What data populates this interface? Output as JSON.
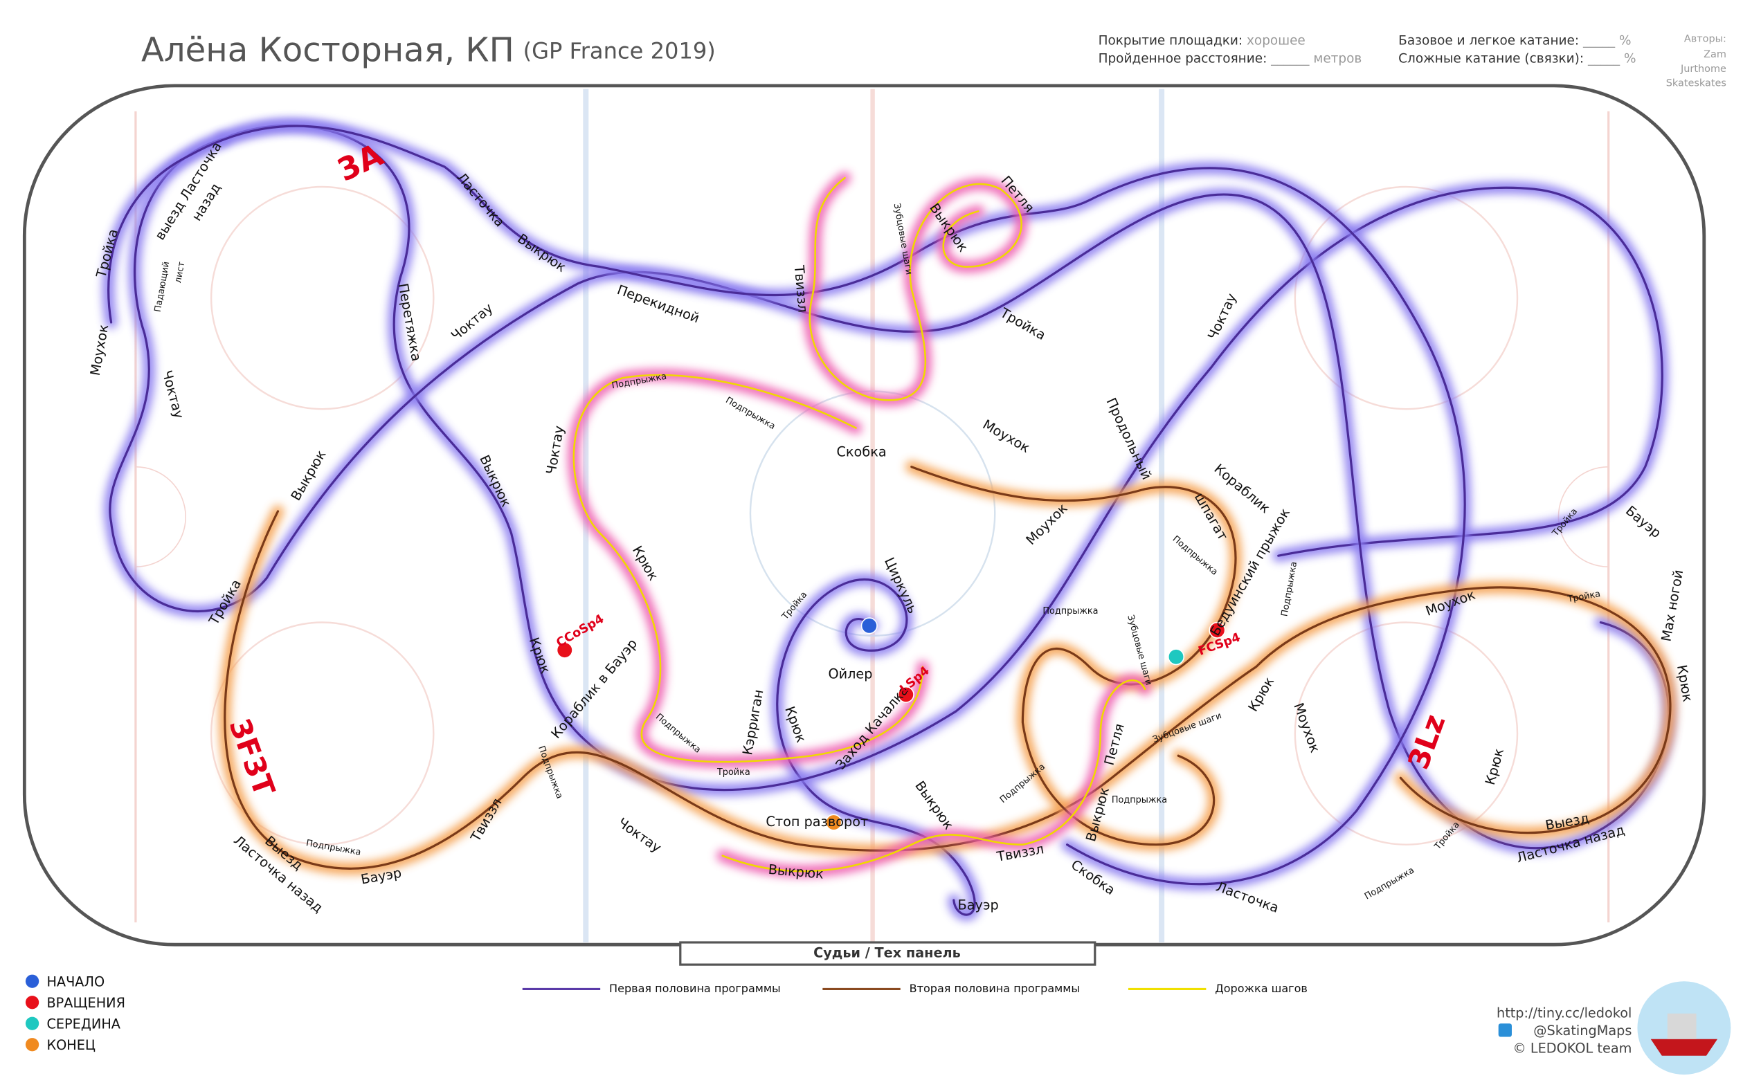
{
  "header": {
    "title": "Алёна Косторная, КП",
    "subtitle": "(GP France 2019)"
  },
  "stats": [
    {
      "label": "Покрытие площадки:",
      "value": "хорошее"
    },
    {
      "label": "Пройденное расстояние:",
      "value": "______ метров"
    },
    {
      "label": "Базовое и легкое катание:",
      "value": "_____ %"
    },
    {
      "label": "Сложные катание (связки):",
      "value": "_____ %"
    }
  ],
  "authors": {
    "title": "Авторы:",
    "names": [
      "Zam",
      "Jurthome",
      "Skateskates"
    ]
  },
  "judges": "Судьи / Тех панель",
  "legend_lines": [
    "Первая половина программы",
    "Вторая половина программы",
    "Дорожка шагов"
  ],
  "legend_points": [
    "НАЧАЛО",
    "ВРАЩЕНИЯ",
    "СЕРЕДИНА",
    "КОНЕЦ"
  ],
  "footer": [
    "http://tiny.cc/ledokol",
    "@SkatingMaps",
    "© LEDOKOL team"
  ],
  "elements": [
    "3A",
    "3F3T",
    "3Lz",
    "CCoSp4",
    "LSp4",
    "FCSp4"
  ],
  "labels": [
    "Тройка",
    "Моухок",
    "выезд Ласточка",
    "назад",
    "Падающий",
    "лист",
    "Чоктау",
    "Перетяжка",
    "Ласточка",
    "Выкрюк",
    "Чоктау",
    "Перекидной",
    "Выкрюк",
    "Тройка",
    "Выкрюк",
    "Твиззл",
    "Зубцовые шаги",
    "Выкрюк",
    "Петля",
    "Тройка",
    "Подпрыжка",
    "Подпрыжка",
    "Чоктау",
    "Скобка",
    "Моухок",
    "Продольный",
    "Чоктау",
    "Кораблик",
    "шпагат",
    "Моухок",
    "Крюк",
    "Циркуль",
    "Тройка",
    "Подпрыжка",
    "Бедуинский прыжок",
    "Подпрыжка",
    "Тройка",
    "Бауэр",
    "Мах ногой",
    "Моухок",
    "Тройка",
    "Крюк",
    "Подпрыжка",
    "Зубцовые шаги",
    "Крюк",
    "Кораблик в Бауэр",
    "Ойлер",
    "Кэрриган",
    "Крюк",
    "Заход Качалка",
    "Подпрыжка",
    "Тройка",
    "Подпрыжка",
    "Крюк",
    "Зубцовые шаги",
    "Моухок",
    "Петля",
    "Крюк",
    "Твиззл",
    "Выкрюк",
    "Подпрыжка",
    "Подпрыжка",
    "Выкрюк",
    "Стоп разворот",
    "Выезд",
    "Ласточка назад",
    "Тройка",
    "Подпрыжка",
    "Чоктау",
    "Твиззл",
    "Выкрюк",
    "Скобка",
    "Ласточка",
    "Бауэр",
    "Бауэр",
    "Выезд",
    "Ласточка назад",
    "Подпрыжка"
  ]
}
